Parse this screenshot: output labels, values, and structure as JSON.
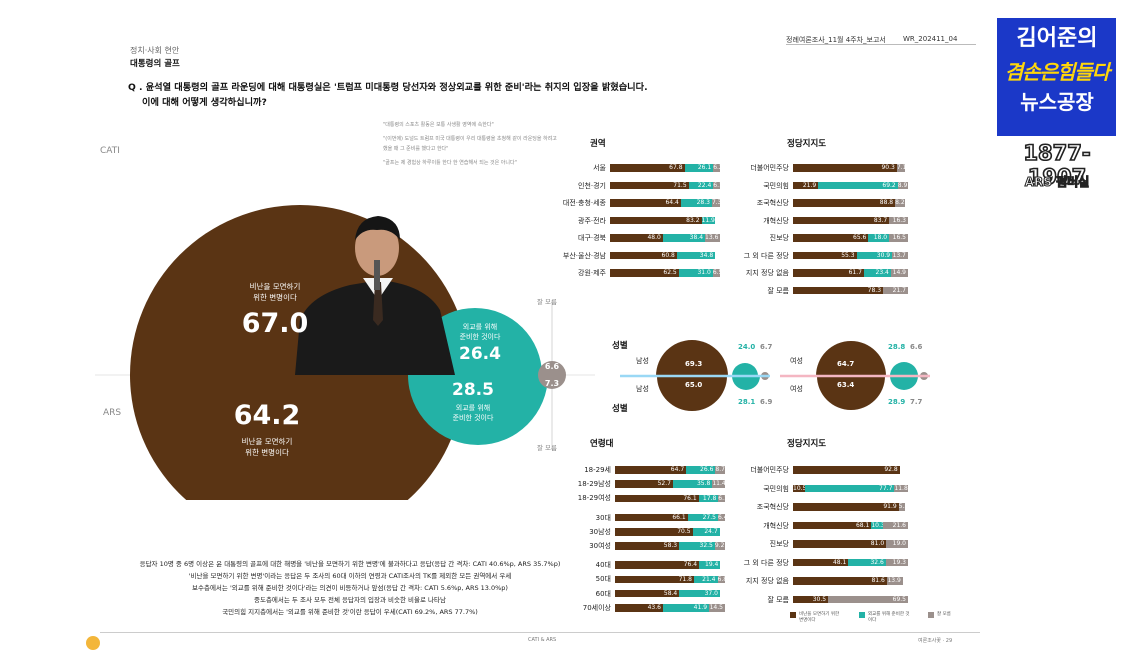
{
  "header": {
    "report_title": "정례여론조사_11월 4주차_보고서",
    "report_code": "WR_202411_04",
    "section": "정치·사회 현안",
    "subsection": "대통령의 골프",
    "question_line1": "Q . 윤석열 대통령의 골프 라운딩에 대해 대통령실은 '트럼프 미대통령 당선자와 정상외교를 위한 준비'라는 취지의 입장을 밝혔습니다.",
    "question_line2": "이에 대해 어떻게 생각하십니까?"
  },
  "quotes": [
    "\"대통령의 스포츠 활동은 보통 사생활 영역에 속한다\"",
    "\"(이번에) 도널드 트럼프 미국 대통령이 우리 대통령을 초청해 같이 라운딩을 하려고 했을 때 그 준비를 했다고 한다\"",
    "\"골프는 제 경험상 하루이틀 한다 한 연습해서 되는 것은 아니다\""
  ],
  "side_labels": {
    "cati": "CATI",
    "ars": "ARS"
  },
  "main": {
    "cati": {
      "criticize": 67.0,
      "prepare": 26.4,
      "dontknow": 6.6
    },
    "ars": {
      "criticize": 64.2,
      "prepare": 28.5,
      "dontknow": 7.3
    },
    "criticize_line1": "비난을 모면하기",
    "criticize_line2": "위한 변명이다",
    "prepare_line1": "외교를 위해",
    "prepare_line2": "준비한 것이다",
    "dontknow_label": "잘 모름",
    "criticize_cati_text": "67.0",
    "criticize_ars_text": "64.2",
    "prepare_cati_text": "26.4",
    "prepare_ars_text": "28.5",
    "dontknow_cati_text": "6.6",
    "dontknow_ars_text": "7.3"
  },
  "chart_data": [
    {
      "type": "bar",
      "title": "권역",
      "categories": [
        "서울",
        "인천·경기",
        "대전·충청·세종",
        "광주·전라",
        "대구·경북",
        "부산·울산·경남",
        "강원·제주"
      ],
      "series": [
        {
          "name": "비난을 모면하기 위한 변명이다",
          "values": [
            67.8,
            71.5,
            64.4,
            83.2,
            48.0,
            60.8,
            62.5
          ]
        },
        {
          "name": "외교를 위해 준비한 것이다",
          "values": [
            26.1,
            22.4,
            28.3,
            11.9,
            38.4,
            34.8,
            31.0
          ]
        },
        {
          "name": "잘 모름",
          "values": [
            6.2,
            6.1,
            7.3,
            0,
            13.6,
            0,
            6.5
          ]
        }
      ]
    },
    {
      "type": "bar",
      "title": "정당지지도",
      "categories": [
        "더불어민주당",
        "국민의힘",
        "조국혁신당",
        "개혁신당",
        "진보당",
        "그 외 다른 정당",
        "지지 정당 없음",
        "잘 모름"
      ],
      "series": [
        {
          "values": [
            90.3,
            21.9,
            88.8,
            83.7,
            65.6,
            55.3,
            61.7,
            78.3
          ]
        },
        {
          "values": [
            0,
            69.2,
            0,
            0,
            18.0,
            30.9,
            23.4,
            0
          ]
        },
        {
          "values": [
            7.1,
            8.9,
            8.2,
            16.3,
            16.5,
            13.7,
            14.9,
            21.7
          ]
        }
      ]
    },
    {
      "type": "pie",
      "title": "성별",
      "groups": [
        {
          "name": "남성",
          "cati": [
            69.3,
            24.0,
            6.7
          ],
          "ars": [
            65.0,
            28.1,
            6.9
          ]
        },
        {
          "name": "여성",
          "cati": [
            64.7,
            28.8,
            6.6
          ],
          "ars": [
            63.4,
            28.9,
            7.7
          ]
        }
      ]
    },
    {
      "type": "bar",
      "title": "연령대",
      "categories": [
        "18-29세",
        "18-29남성",
        "18-29여성",
        "30대",
        "30남성",
        "30여성",
        "40대",
        "50대",
        "60대",
        "70세이상"
      ],
      "series": [
        {
          "values": [
            64.7,
            52.7,
            76.1,
            66.1,
            70.5,
            58.3,
            76.4,
            71.8,
            58.4,
            43.6
          ]
        },
        {
          "values": [
            26.6,
            35.8,
            17.8,
            27.5,
            24.7,
            32.5,
            19.4,
            21.4,
            37.0,
            41.9
          ]
        },
        {
          "values": [
            8.7,
            11.4,
            6.1,
            6.4,
            0,
            9.2,
            0,
            6.8,
            0,
            14.5
          ]
        }
      ]
    },
    {
      "type": "bar",
      "title": "정당지지도",
      "categories": [
        "더불어민주당",
        "국민의힘",
        "조국혁신당",
        "개혁신당",
        "진보당",
        "그 외 다른 정당",
        "지지 정당 없음",
        "잘 모름"
      ],
      "series": [
        {
          "values": [
            92.8,
            10.5,
            91.9,
            68.1,
            81.0,
            48.1,
            81.6,
            30.5
          ]
        },
        {
          "values": [
            0,
            77.7,
            0,
            10.3,
            0,
            32.6,
            0,
            0
          ]
        },
        {
          "values": [
            0,
            11.8,
            5.3,
            21.6,
            19.0,
            19.3,
            13.9,
            69.5
          ]
        }
      ]
    }
  ],
  "panels": {
    "region_title": "권역",
    "party_title": "정당지지도",
    "gender_title": "성별",
    "age_title": "연령대",
    "party2_title": "정당지지도",
    "male": "남성",
    "female": "여성"
  },
  "notes": [
    "응답자 10명 중 6명 이상은 윤 대통령의 골프에 대한 해명을 '비난을 모면하기 위한 변명'에 불과하다고 응답(응답 간 격차: CATI 40.6%p, ARS 35.7%p)",
    "'비난을 모면하기 위한 변명'이라는 응답은 두 조사의 60대 이하의 연령과 CATI조사의 TK를 제외한 모든 권역에서 우세",
    "보수층에서는 '외교를 위해 준비한 것이다'라는 의견이 비등하거나 앞섬(응답 간 격차: CATI 5.6%p, ARS 13.0%p)",
    "중도층에서는 두 조사 모두 전체 응답자의 입장과 비슷한 비율로 나타남",
    "국민의힘 지지층에서는 '외교를 위해 준비한 것'이란 응답이 우세(CATI 69.2%, ARS 77.7%)"
  ],
  "legend": [
    "비난을 모면하기 위한 변명이다",
    "외교를 위해 준비한 것이다",
    "잘 모름"
  ],
  "footer": {
    "center": "CATI & ARS",
    "right": "여론조사꽃 · 29"
  },
  "badge": {
    "line1": "김어준의",
    "line2": "겸손은힘들다",
    "line3": "뉴스공장",
    "phone": "1877-1907",
    "ars": "ARS 펌버실"
  },
  "colors": {
    "brown": "#5a3414",
    "teal": "#23b2a6",
    "gray": "#9b908c"
  }
}
